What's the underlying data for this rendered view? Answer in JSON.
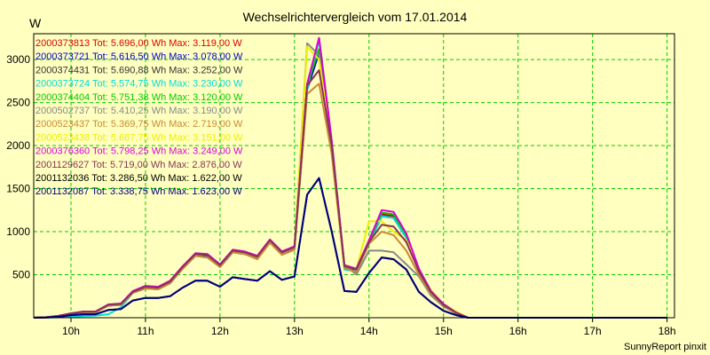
{
  "chart_data": {
    "type": "line",
    "title": "Wechselrichtervergleich vom 17.01.2014",
    "ylabel": "W",
    "xlabel": "",
    "credit": "SunnyReport pinxit",
    "ylim": [
      0,
      3300
    ],
    "xlim": [
      9.5,
      18.1
    ],
    "y_ticks": [
      500,
      1000,
      1500,
      2000,
      2500,
      3000
    ],
    "x_ticks": [
      10,
      11,
      12,
      13,
      14,
      15,
      16,
      17,
      18
    ],
    "x_tick_labels": [
      "10h",
      "11h",
      "12h",
      "13h",
      "14h",
      "15h",
      "16h",
      "17h",
      "18h"
    ],
    "grid": true,
    "x": [
      9.5,
      9.67,
      9.83,
      10.0,
      10.17,
      10.33,
      10.5,
      10.67,
      10.83,
      11.0,
      11.17,
      11.33,
      11.5,
      11.67,
      11.83,
      12.0,
      12.17,
      12.33,
      12.5,
      12.67,
      12.83,
      13.0,
      13.17,
      13.33,
      13.5,
      13.67,
      13.83,
      14.0,
      14.17,
      14.33,
      14.5,
      14.67,
      14.83,
      15.0,
      15.17,
      15.33,
      15.5,
      15.67,
      15.83,
      16.0,
      16.17,
      16.33,
      16.5,
      16.67,
      16.83,
      17.0,
      17.17,
      17.33,
      17.5,
      17.67,
      17.83,
      18.0
    ],
    "series": [
      {
        "name": "2000373813 Tot: 5.696,00 Wh Max: 3.119,00 W",
        "color": "#dd0000",
        "values": [
          0,
          5,
          20,
          50,
          70,
          70,
          150,
          160,
          300,
          360,
          350,
          420,
          590,
          740,
          730,
          610,
          780,
          760,
          700,
          900,
          760,
          820,
          2700,
          3120,
          2000,
          600,
          560,
          880,
          1200,
          1180,
          950,
          560,
          300,
          150,
          60,
          0,
          0,
          0,
          0,
          0,
          0,
          0,
          0,
          0,
          0,
          0,
          0,
          0,
          0,
          0,
          0,
          0
        ]
      },
      {
        "name": "2000373721 Tot: 5.616,50 Wh Max: 3.078,00 W",
        "color": "#0000cc",
        "values": [
          0,
          5,
          18,
          45,
          65,
          65,
          140,
          150,
          290,
          350,
          340,
          400,
          570,
          720,
          710,
          590,
          760,
          740,
          690,
          880,
          740,
          800,
          2650,
          3078,
          1950,
          580,
          540,
          860,
          1180,
          1160,
          930,
          540,
          290,
          140,
          50,
          0,
          0,
          0,
          0,
          0,
          0,
          0,
          0,
          0,
          0,
          0,
          0,
          0,
          0,
          0,
          0,
          0
        ]
      },
      {
        "name": "2000374431 Tot: 5.690,88 Wh Max: 3.252,00 W",
        "color": "#333333",
        "values": [
          0,
          5,
          22,
          50,
          72,
          72,
          150,
          160,
          300,
          360,
          350,
          420,
          590,
          740,
          730,
          610,
          780,
          760,
          710,
          900,
          760,
          820,
          2700,
          3252,
          2050,
          600,
          560,
          880,
          1220,
          1200,
          960,
          560,
          300,
          150,
          60,
          0,
          0,
          0,
          0,
          0,
          0,
          0,
          0,
          0,
          0,
          0,
          0,
          0,
          0,
          0,
          0,
          0
        ]
      },
      {
        "name": "2000373724 Tot: 5.574,75 Wh Max: 3.230,00 W",
        "color": "#00dddd",
        "values": [
          0,
          0,
          5,
          10,
          20,
          25,
          40,
          120,
          290,
          340,
          330,
          400,
          580,
          720,
          700,
          590,
          760,
          740,
          690,
          880,
          740,
          800,
          2650,
          3230,
          2000,
          560,
          540,
          860,
          1180,
          1160,
          930,
          540,
          290,
          140,
          50,
          0,
          0,
          0,
          0,
          0,
          0,
          0,
          0,
          0,
          0,
          0,
          0,
          0,
          0,
          0,
          0,
          0
        ]
      },
      {
        "name": "2000374404 Tot: 5.751,38 Wh Max: 3.120,00 W",
        "color": "#00cc00",
        "values": [
          0,
          5,
          20,
          50,
          70,
          70,
          150,
          160,
          300,
          360,
          350,
          420,
          590,
          740,
          730,
          610,
          780,
          760,
          710,
          900,
          760,
          820,
          2700,
          3120,
          2000,
          600,
          560,
          880,
          1220,
          1200,
          960,
          560,
          300,
          150,
          60,
          0,
          0,
          0,
          0,
          0,
          0,
          0,
          0,
          0,
          0,
          0,
          0,
          0,
          0,
          0,
          0,
          0
        ]
      },
      {
        "name": "2000502737 Tot: 5.410,25 Wh Max: 3.190,00 W",
        "color": "#888888",
        "values": [
          0,
          5,
          18,
          45,
          65,
          65,
          140,
          150,
          290,
          340,
          330,
          400,
          570,
          720,
          700,
          590,
          760,
          740,
          690,
          880,
          740,
          800,
          3190,
          3050,
          1900,
          620,
          500,
          780,
          780,
          760,
          620,
          480,
          260,
          130,
          50,
          0,
          0,
          0,
          0,
          0,
          0,
          0,
          0,
          0,
          0,
          0,
          0,
          0,
          0,
          0,
          0,
          0
        ]
      },
      {
        "name": "2000523437 Tot: 5.369,75 Wh Max: 2.719,00 W",
        "color": "#cc8833",
        "values": [
          0,
          5,
          18,
          45,
          65,
          65,
          140,
          150,
          290,
          340,
          330,
          400,
          570,
          720,
          700,
          590,
          760,
          740,
          680,
          870,
          730,
          790,
          2600,
          2719,
          1900,
          580,
          530,
          860,
          1000,
          960,
          780,
          500,
          280,
          140,
          50,
          0,
          0,
          0,
          0,
          0,
          0,
          0,
          0,
          0,
          0,
          0,
          0,
          0,
          0,
          0,
          0,
          0
        ]
      },
      {
        "name": "2000523438 Tot: 5.667,75 Wh Max: 3.151,00 W",
        "color": "#eeee00",
        "values": [
          0,
          5,
          20,
          50,
          70,
          70,
          150,
          160,
          300,
          360,
          350,
          420,
          590,
          740,
          730,
          610,
          780,
          760,
          710,
          900,
          760,
          820,
          3151,
          3000,
          2000,
          620,
          560,
          1120,
          1120,
          1000,
          900,
          560,
          320,
          160,
          70,
          0,
          0,
          0,
          0,
          0,
          0,
          0,
          0,
          0,
          0,
          0,
          0,
          0,
          0,
          0,
          0,
          0
        ]
      },
      {
        "name": "2000376360 Tot: 5.798,25 Wh Max: 3.249,00 W",
        "color": "#dd00dd",
        "values": [
          0,
          5,
          22,
          52,
          72,
          72,
          155,
          165,
          310,
          370,
          360,
          430,
          600,
          750,
          740,
          620,
          790,
          770,
          720,
          910,
          770,
          830,
          2720,
          3249,
          2050,
          610,
          570,
          900,
          1250,
          1230,
          980,
          570,
          310,
          160,
          60,
          0,
          0,
          0,
          0,
          0,
          0,
          0,
          0,
          0,
          0,
          0,
          0,
          0,
          0,
          0,
          0,
          0
        ]
      },
      {
        "name": "2001129627 Tot: 5.719,00 Wh Max: 2.876,00 W",
        "color": "#883355",
        "values": [
          0,
          5,
          20,
          50,
          70,
          70,
          150,
          160,
          300,
          360,
          350,
          420,
          590,
          740,
          730,
          610,
          780,
          760,
          710,
          900,
          760,
          820,
          2700,
          2876,
          2000,
          600,
          560,
          880,
          1080,
          1060,
          880,
          540,
          300,
          150,
          60,
          0,
          0,
          0,
          0,
          0,
          0,
          0,
          0,
          0,
          0,
          0,
          0,
          0,
          0,
          0,
          0,
          0
        ]
      },
      {
        "name": "2001132036 Tot: 3.286,50 Wh Max: 1.622,00 W",
        "color": "#000000",
        "values": [
          0,
          3,
          10,
          30,
          40,
          40,
          90,
          100,
          200,
          230,
          230,
          250,
          350,
          430,
          430,
          360,
          470,
          450,
          430,
          540,
          440,
          480,
          1430,
          1622,
          1000,
          310,
          300,
          520,
          700,
          680,
          560,
          300,
          180,
          80,
          30,
          0,
          0,
          0,
          0,
          0,
          0,
          0,
          0,
          0,
          0,
          0,
          0,
          0,
          0,
          0,
          0,
          0
        ]
      },
      {
        "name": "2001132087 Tot: 3.338,75 Wh Max: 1.623,00 W",
        "color": "#000080",
        "values": [
          0,
          3,
          10,
          30,
          40,
          40,
          90,
          100,
          200,
          230,
          230,
          250,
          350,
          430,
          430,
          360,
          470,
          450,
          430,
          540,
          440,
          480,
          1430,
          1623,
          1000,
          310,
          300,
          520,
          700,
          680,
          560,
          300,
          180,
          80,
          30,
          0,
          0,
          0,
          0,
          0,
          0,
          0,
          0,
          0,
          0,
          0,
          0,
          0,
          0,
          0,
          0,
          0
        ]
      }
    ]
  }
}
